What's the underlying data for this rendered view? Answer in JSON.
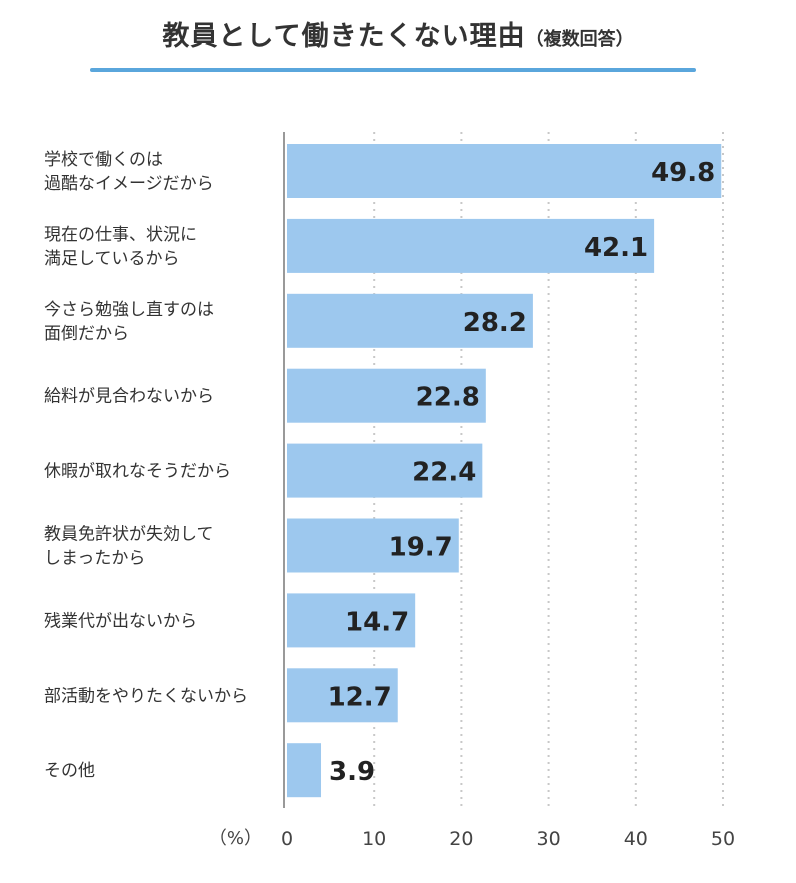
{
  "title": "教員として働きたくない理由",
  "subtitle": "（複数回答）",
  "colors": {
    "bar": "#9dc8ee",
    "accent": "#5aa6dc",
    "grid": "#c8c8c8",
    "axis": "#999999"
  },
  "chart_data": {
    "type": "bar",
    "orientation": "horizontal",
    "unit": "（%）",
    "xlim": [
      0,
      50
    ],
    "ticks": [
      0,
      10,
      20,
      30,
      40,
      50
    ],
    "grid": true,
    "categories": [
      [
        "学校で働くのは",
        "過酷なイメージだから"
      ],
      [
        "現在の仕事、状況に",
        "満足しているから"
      ],
      [
        "今さら勉強し直すのは",
        "面倒だから"
      ],
      [
        "給料が見合わないから"
      ],
      [
        "休暇が取れなそうだから"
      ],
      [
        "教員免許状が失効して",
        "しまったから"
      ],
      [
        "残業代が出ないから"
      ],
      [
        "部活動をやりたくないから"
      ],
      [
        "その他"
      ]
    ],
    "values": [
      49.8,
      42.1,
      28.2,
      22.8,
      22.4,
      19.7,
      14.7,
      12.7,
      3.9
    ]
  }
}
